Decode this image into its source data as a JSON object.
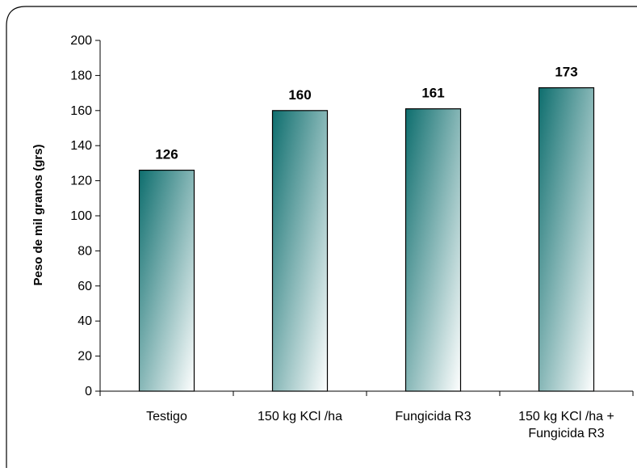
{
  "chart_data": {
    "type": "bar",
    "title": "",
    "xlabel": "",
    "ylabel": "Peso de mil granos (grs)",
    "ylim": [
      0,
      200
    ],
    "ytick_step": 20,
    "grid": false,
    "legend": "none",
    "categories": [
      [
        "Testigo"
      ],
      [
        "150 kg KCl /ha"
      ],
      [
        "Fungicida R3"
      ],
      [
        "150 kg KCl /ha +",
        "Fungicida R3"
      ]
    ],
    "values": [
      126,
      160,
      161,
      173
    ],
    "data_labels": [
      "126",
      "160",
      "161",
      "173"
    ],
    "colors": {
      "bar_dark": "#0e6e6e",
      "bar_light": "#ffffff",
      "bar_border": "#000000",
      "axis": "#000000"
    }
  }
}
